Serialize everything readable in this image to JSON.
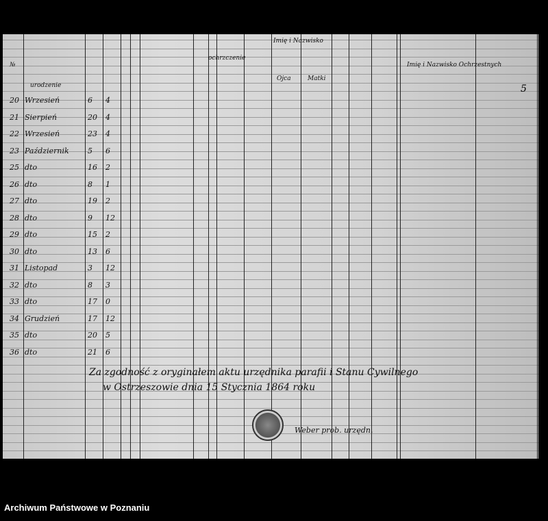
{
  "document": {
    "header": {
      "col_no": "№",
      "birth_group": "urodzenie",
      "baptism_group": "ochrzczenie",
      "father_mother_names": "Imię i Nazwisko",
      "father": "Ojca",
      "mother": "Matki",
      "godparents": "Imię i Nazwisko Ochrzestnych"
    },
    "rows": [
      {
        "no": "20",
        "month": "Wrzesień",
        "day": "6",
        "hour": "4"
      },
      {
        "no": "21",
        "month": "Sierpień",
        "day": "20",
        "hour": "4"
      },
      {
        "no": "22",
        "month": "Wrzesień",
        "day": "23",
        "hour": "4"
      },
      {
        "no": "23",
        "month": "Październik",
        "day": "5",
        "hour": "6"
      },
      {
        "no": "25",
        "month": "dto",
        "day": "16",
        "hour": "2"
      },
      {
        "no": "26",
        "month": "dto",
        "day": "8",
        "hour": "1"
      },
      {
        "no": "27",
        "month": "dto",
        "day": "19",
        "hour": "2"
      },
      {
        "no": "28",
        "month": "dto",
        "day": "9",
        "hour": "12"
      },
      {
        "no": "29",
        "month": "dto",
        "day": "15",
        "hour": "2"
      },
      {
        "no": "30",
        "month": "dto",
        "day": "13",
        "hour": "6"
      },
      {
        "no": "31",
        "month": "Listopad",
        "day": "3",
        "hour": "12"
      },
      {
        "no": "32",
        "month": "dto",
        "day": "8",
        "hour": "3"
      },
      {
        "no": "33",
        "month": "dto",
        "day": "17",
        "hour": "0"
      },
      {
        "no": "34",
        "month": "Grudzień",
        "day": "17",
        "hour": "12"
      },
      {
        "no": "35",
        "month": "dto",
        "day": "20",
        "hour": "5"
      },
      {
        "no": "36",
        "month": "dto",
        "day": "21",
        "hour": "6"
      }
    ],
    "closing_line1": "Za zgodność z oryginałem aktu urzędnika parafii i Stanu Cywilnego",
    "closing_line2": "w Ostrzeszowie dnia 15 Stycznia 1864 roku",
    "signature": "Weber prob. urzędn.",
    "page_number": "5"
  },
  "caption": "Archiwum Państwowe w Poznaniu"
}
